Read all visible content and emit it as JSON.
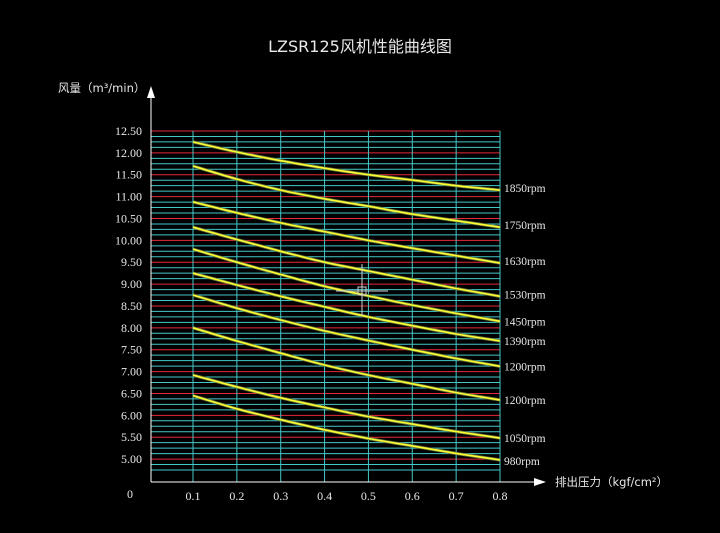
{
  "chart_data": {
    "type": "line",
    "title": "LZSR125风机性能曲线图",
    "xlabel": "排出压力（kgf/cm²）",
    "ylabel": "风量（m³/min）",
    "origin_label": "0",
    "xlim": [
      0.1,
      0.8
    ],
    "ylim": [
      4.75,
      12.5
    ],
    "x_ticks": [
      "0.1",
      "0.2",
      "0.3",
      "0.4",
      "0.5",
      "0.6",
      "0.7",
      "0.8"
    ],
    "y_ticks": [
      "5.00",
      "5.50",
      "6.00",
      "6.50",
      "7.00",
      "7.50",
      "8.00",
      "8.50",
      "9.00",
      "9.50",
      "10.00",
      "10.50",
      "11.00",
      "11.50",
      "12.00",
      "12.50"
    ],
    "x": [
      0.1,
      0.2,
      0.3,
      0.4,
      0.5,
      0.6,
      0.7,
      0.8
    ],
    "series": [
      {
        "name": "1850rpm",
        "values": [
          12.25,
          12.02,
          11.82,
          11.65,
          11.5,
          11.38,
          11.25,
          11.15
        ]
      },
      {
        "name": "1750rpm",
        "values": [
          11.7,
          11.4,
          11.15,
          10.95,
          10.78,
          10.6,
          10.45,
          10.3
        ]
      },
      {
        "name": "1630rpm",
        "values": [
          10.88,
          10.63,
          10.4,
          10.2,
          10.0,
          9.82,
          9.65,
          9.48
        ]
      },
      {
        "name": "1530rpm",
        "values": [
          10.3,
          10.02,
          9.75,
          9.5,
          9.3,
          9.1,
          8.9,
          8.72
        ]
      },
      {
        "name": "1450rpm",
        "values": [
          9.8,
          9.5,
          9.22,
          8.95,
          8.73,
          8.52,
          8.33,
          8.15
        ]
      },
      {
        "name": "1390rpm",
        "values": [
          9.25,
          8.98,
          8.72,
          8.48,
          8.25,
          8.05,
          7.86,
          7.7
        ]
      },
      {
        "name": "1200rpm",
        "values": [
          8.75,
          8.45,
          8.18,
          7.93,
          7.71,
          7.5,
          7.3,
          7.12
        ]
      },
      {
        "name": "1200rpm",
        "values": [
          8.0,
          7.7,
          7.42,
          7.15,
          6.92,
          6.72,
          6.52,
          6.35
        ]
      },
      {
        "name": "1050rpm",
        "values": [
          6.92,
          6.65,
          6.4,
          6.18,
          5.97,
          5.8,
          5.63,
          5.48
        ]
      },
      {
        "name": "980rpm",
        "values": [
          6.45,
          6.15,
          5.9,
          5.67,
          5.47,
          5.3,
          5.13,
          4.98
        ]
      }
    ],
    "grid": true,
    "colors": {
      "background": "#000000",
      "line": "#ffff33",
      "line_outline": "#6a7a3a",
      "grid_major": "#e6293a",
      "grid_minor": "#45c8c8",
      "grid_vertical": "#45c8c8",
      "axis": "#ffffff",
      "text": "#e8e8e8"
    }
  }
}
